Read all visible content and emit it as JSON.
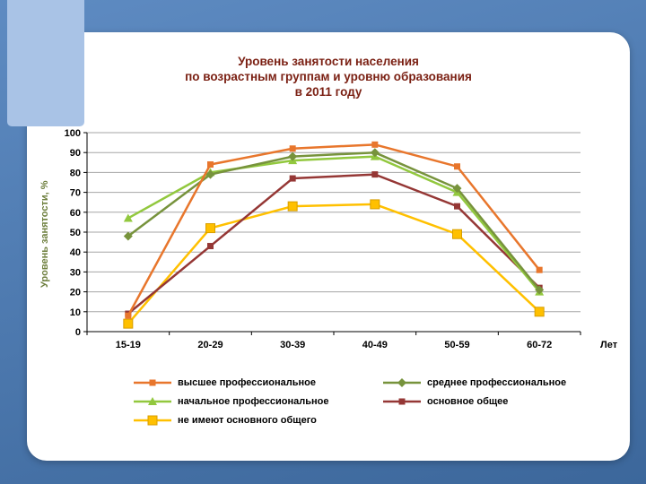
{
  "slide": {
    "background_top": "#5e8bc2",
    "background_bottom": "#3c679b",
    "accent_block_color": "#a9c3e6",
    "panel_color": "#ffffff"
  },
  "chart_data": {
    "type": "line",
    "title": "Уровень занятости населения по возрастным группам и уровню образования в 2011 году",
    "title_lines": [
      "Уровень занятости населения",
      "по возрастным группам и уровню образования",
      "в 2011 году"
    ],
    "title_color": "#7a1f12",
    "ylabel": "Уровень занятости, %",
    "ylabel_color": "#6e7f3e",
    "xlabel": "Лет",
    "categories": [
      "15-19",
      "20-29",
      "30-39",
      "40-49",
      "50-59",
      "60-72"
    ],
    "ylim": [
      0,
      100
    ],
    "ytick_step": 10,
    "grid": true,
    "legend_position": "bottom",
    "series": [
      {
        "name": "высшее профессиональное",
        "color": "#e8762c",
        "marker": "square",
        "values": [
          8,
          84,
          92,
          94,
          83,
          31
        ]
      },
      {
        "name": "среднее профессиональное",
        "color": "#77933c",
        "marker": "diamond",
        "values": [
          48,
          79,
          88,
          90,
          72,
          21
        ]
      },
      {
        "name": "начальное профессиональное",
        "color": "#92c83e",
        "marker": "triangle",
        "values": [
          57,
          80,
          86,
          88,
          70,
          20
        ]
      },
      {
        "name": "основное общее",
        "color": "#953735",
        "marker": "square",
        "values": [
          9,
          43,
          77,
          79,
          63,
          22
        ]
      },
      {
        "name": "не имеют основного общего",
        "color": "#ffc000",
        "marker": "square-large",
        "values": [
          4,
          52,
          63,
          64,
          49,
          10
        ]
      }
    ],
    "legend_columns": [
      [
        0,
        2,
        4
      ],
      [
        1,
        3
      ]
    ]
  }
}
